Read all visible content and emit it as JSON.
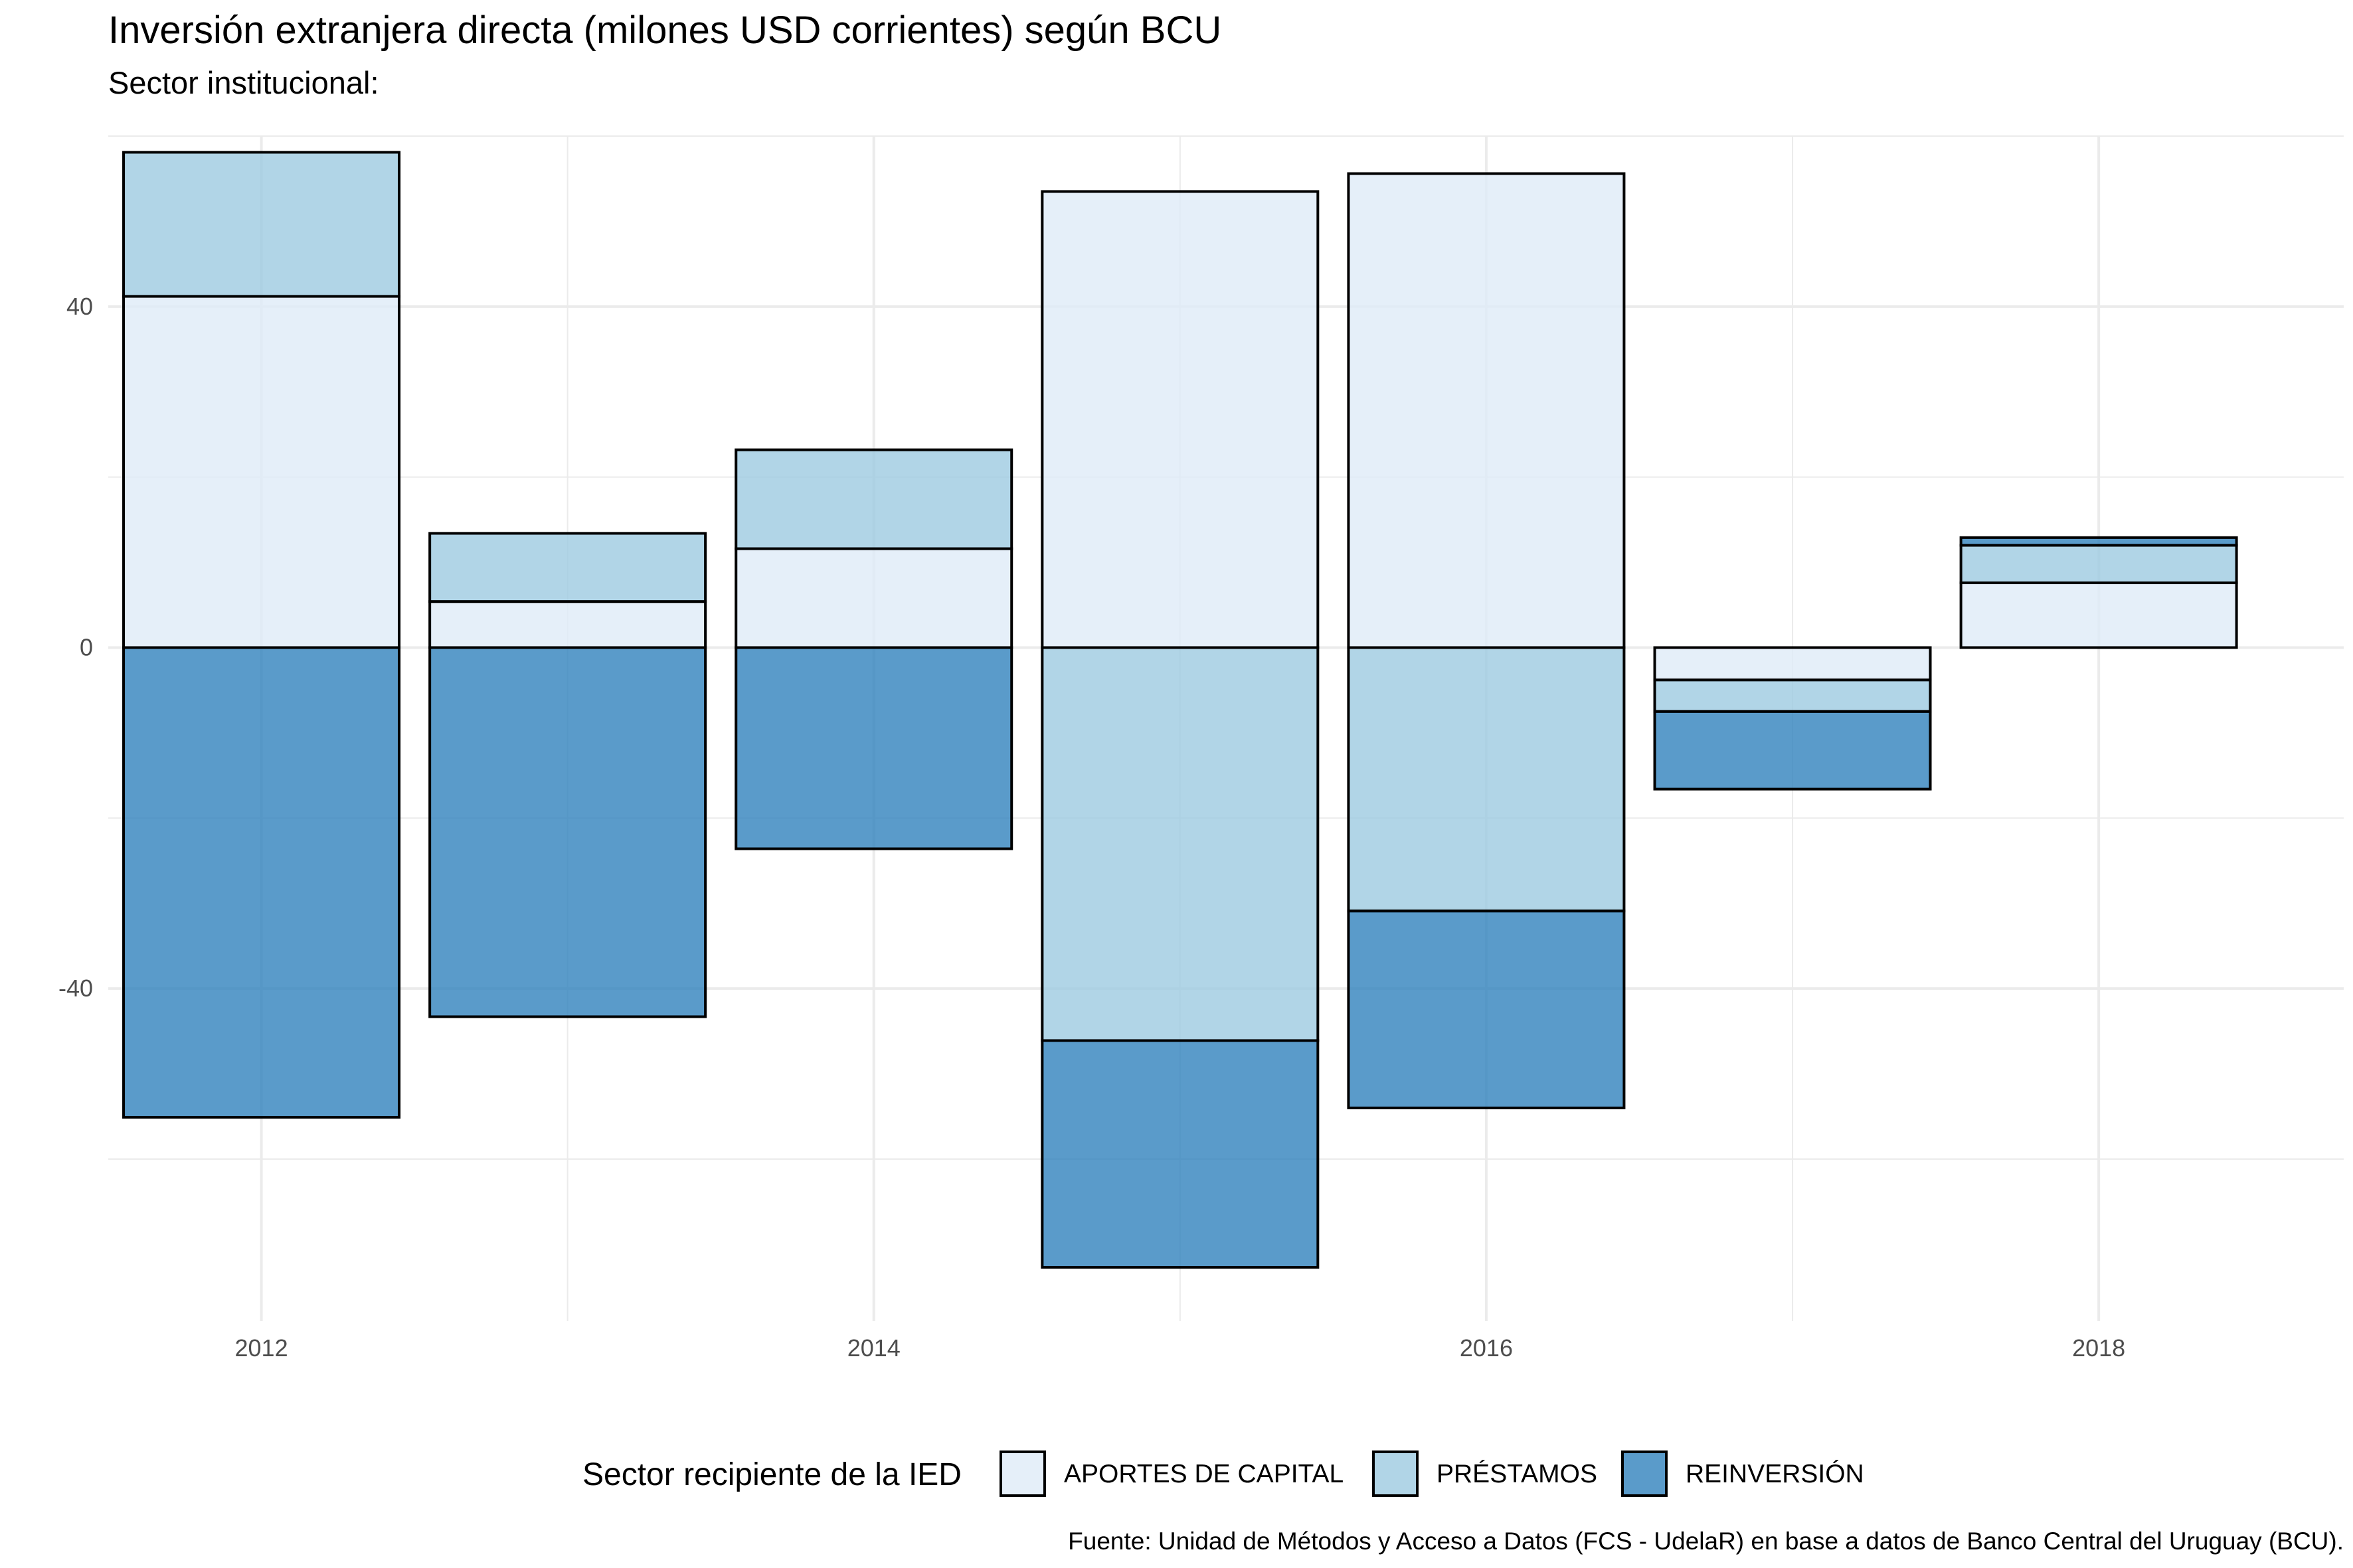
{
  "chart_data": {
    "type": "bar",
    "stacked": true,
    "title": "Inversión extranjera directa (milones USD corrientes) según BCU",
    "subtitle": "Sector institucional:",
    "xlabel": "",
    "ylabel": "",
    "caption": "Fuente: Unidad de Métodos y Acceso a Datos (FCS - UdelaR) en base a datos de Banco Central del Uruguay (BCU).",
    "x": [
      2012,
      2013,
      2014,
      2015,
      2016,
      2017,
      2018
    ],
    "x_ticks": [
      "2012",
      "2014",
      "2016",
      "2018"
    ],
    "y_ticks": [
      "40",
      "0",
      "-40"
    ],
    "ylim": [
      -79,
      60
    ],
    "xlim": [
      2011.5,
      2018.8
    ],
    "grid": true,
    "legend": {
      "title": "Sector recipiente de la IED",
      "position": "bottom",
      "items": [
        "APORTES DE CAPITAL",
        "PRÉSTAMOS",
        "REINVERSIÓN"
      ]
    },
    "series": [
      {
        "name": "APORTES DE CAPITAL",
        "color": "#deebf7",
        "values": [
          41.2,
          5.4,
          11.6,
          53.5,
          55.6,
          -3.8,
          7.6
        ]
      },
      {
        "name": "PRÉSTAMOS",
        "color": "#9ecae1",
        "values": [
          16.9,
          8.0,
          11.6,
          -46.1,
          -30.9,
          -3.7,
          4.4
        ]
      },
      {
        "name": "REINVERSIÓN",
        "color": "#3182bd",
        "values": [
          -55.1,
          -43.3,
          -23.6,
          -26.6,
          -23.1,
          -9.1,
          0.9
        ]
      }
    ]
  }
}
